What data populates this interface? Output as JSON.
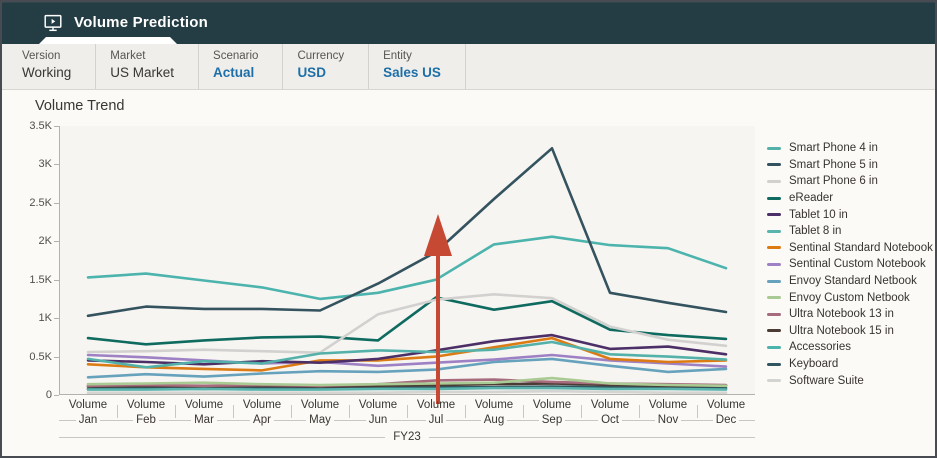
{
  "header": {
    "title": "Volume Prediction",
    "icon": "monitor-play-icon"
  },
  "pov": {
    "items": [
      {
        "label": "Version",
        "value": "Working",
        "style": "dark"
      },
      {
        "label": "Market",
        "value": "US Market",
        "style": "dark"
      },
      {
        "label": "Scenario",
        "value": "Actual",
        "style": "link"
      },
      {
        "label": "Currency",
        "value": "USD",
        "style": "link"
      },
      {
        "label": "Entity",
        "value": "Sales US",
        "style": "link"
      }
    ]
  },
  "chart": {
    "title": "Volume Trend"
  },
  "chart_data": {
    "type": "line",
    "title": "Volume Trend",
    "grid": false,
    "legend_position": "right",
    "x_axis": {
      "group_label": "Volume",
      "categories": [
        "Jan",
        "Feb",
        "Mar",
        "Apr",
        "May",
        "Jun",
        "Jul",
        "Aug",
        "Sep",
        "Oct",
        "Nov",
        "Dec"
      ],
      "period_label": "FY23"
    },
    "y_axis": {
      "min": 0,
      "max": 3500,
      "tick_values": [
        0,
        500,
        1000,
        1500,
        2000,
        2500,
        3000,
        3500
      ],
      "tick_labels": [
        "0",
        "0.5K",
        "1K",
        "1.5K",
        "2K",
        "2.5K",
        "3K",
        "3.5K"
      ]
    },
    "series": [
      {
        "name": "Smart Phone 4 in",
        "color": "#53b1a9",
        "values": [
          470,
          360,
          440,
          410,
          540,
          580,
          560,
          590,
          690,
          530,
          500,
          460
        ]
      },
      {
        "name": "Smart Phone 5 in",
        "color": "#34535f",
        "values": [
          1030,
          1150,
          1120,
          1120,
          1100,
          1450,
          1860,
          2550,
          3210,
          1330,
          1200,
          1080
        ]
      },
      {
        "name": "Smart Phone 6 in",
        "color": "#d2d1cf",
        "values": [
          560,
          570,
          590,
          570,
          550,
          1050,
          1240,
          1310,
          1260,
          890,
          720,
          640
        ]
      },
      {
        "name": "eReader",
        "color": "#0f6b5f",
        "values": [
          740,
          660,
          710,
          750,
          760,
          710,
          1270,
          1110,
          1220,
          850,
          780,
          730
        ]
      },
      {
        "name": "Tablet 10 in",
        "color": "#4c2f66",
        "values": [
          450,
          430,
          400,
          440,
          420,
          470,
          580,
          700,
          780,
          600,
          630,
          530
        ]
      },
      {
        "name": "Tablet 8 in",
        "color": "#58b4ac",
        "values": [
          70,
          70,
          80,
          70,
          70,
          80,
          80,
          90,
          90,
          80,
          80,
          70
        ]
      },
      {
        "name": "Sentinal Standard Notebook",
        "color": "#dc7b14",
        "values": [
          400,
          360,
          340,
          320,
          450,
          450,
          500,
          620,
          740,
          470,
          430,
          450
        ]
      },
      {
        "name": "Sentinal Custom Notebook",
        "color": "#9e81c4",
        "values": [
          520,
          490,
          450,
          410,
          430,
          380,
          420,
          460,
          520,
          450,
          410,
          370
        ]
      },
      {
        "name": "Envoy Standard Netbook",
        "color": "#67a2bc",
        "values": [
          230,
          270,
          240,
          280,
          310,
          300,
          330,
          430,
          470,
          380,
          300,
          340
        ]
      },
      {
        "name": "Envoy Custom Netbook",
        "color": "#aaca93",
        "values": [
          140,
          150,
          160,
          140,
          130,
          140,
          150,
          160,
          220,
          150,
          130,
          120
        ]
      },
      {
        "name": "Ultra Notebook 13 in",
        "color": "#a76b7e",
        "values": [
          120,
          130,
          120,
          130,
          120,
          140,
          190,
          200,
          170,
          150,
          140,
          130
        ]
      },
      {
        "name": "Ultra Notebook 15 in",
        "color": "#4b3d36",
        "values": [
          110,
          120,
          110,
          120,
          110,
          120,
          130,
          140,
          150,
          130,
          120,
          120
        ]
      },
      {
        "name": "Accessories",
        "color": "#4cb4ac",
        "values": [
          1530,
          1580,
          1490,
          1400,
          1250,
          1330,
          1500,
          1960,
          2060,
          1950,
          1910,
          1650
        ]
      },
      {
        "name": "Keyboard",
        "color": "#315660",
        "values": [
          80,
          90,
          80,
          90,
          80,
          90,
          100,
          100,
          110,
          100,
          90,
          90
        ]
      },
      {
        "name": "Software Suite",
        "color": "#d4d4d2",
        "values": [
          30,
          30,
          30,
          30,
          30,
          30,
          40,
          40,
          50,
          40,
          30,
          30
        ]
      }
    ],
    "annotation": {
      "type": "up-arrow",
      "month": "Jul",
      "color": "#c64a33"
    }
  },
  "colors": {
    "header_bg": "#243c43",
    "pov_bg": "#efeeeb",
    "link_blue": "#1e6fa8",
    "plot_bg": "#f6f5f2",
    "axis": "#b5b2ae",
    "annotation_red": "#c64a33"
  }
}
